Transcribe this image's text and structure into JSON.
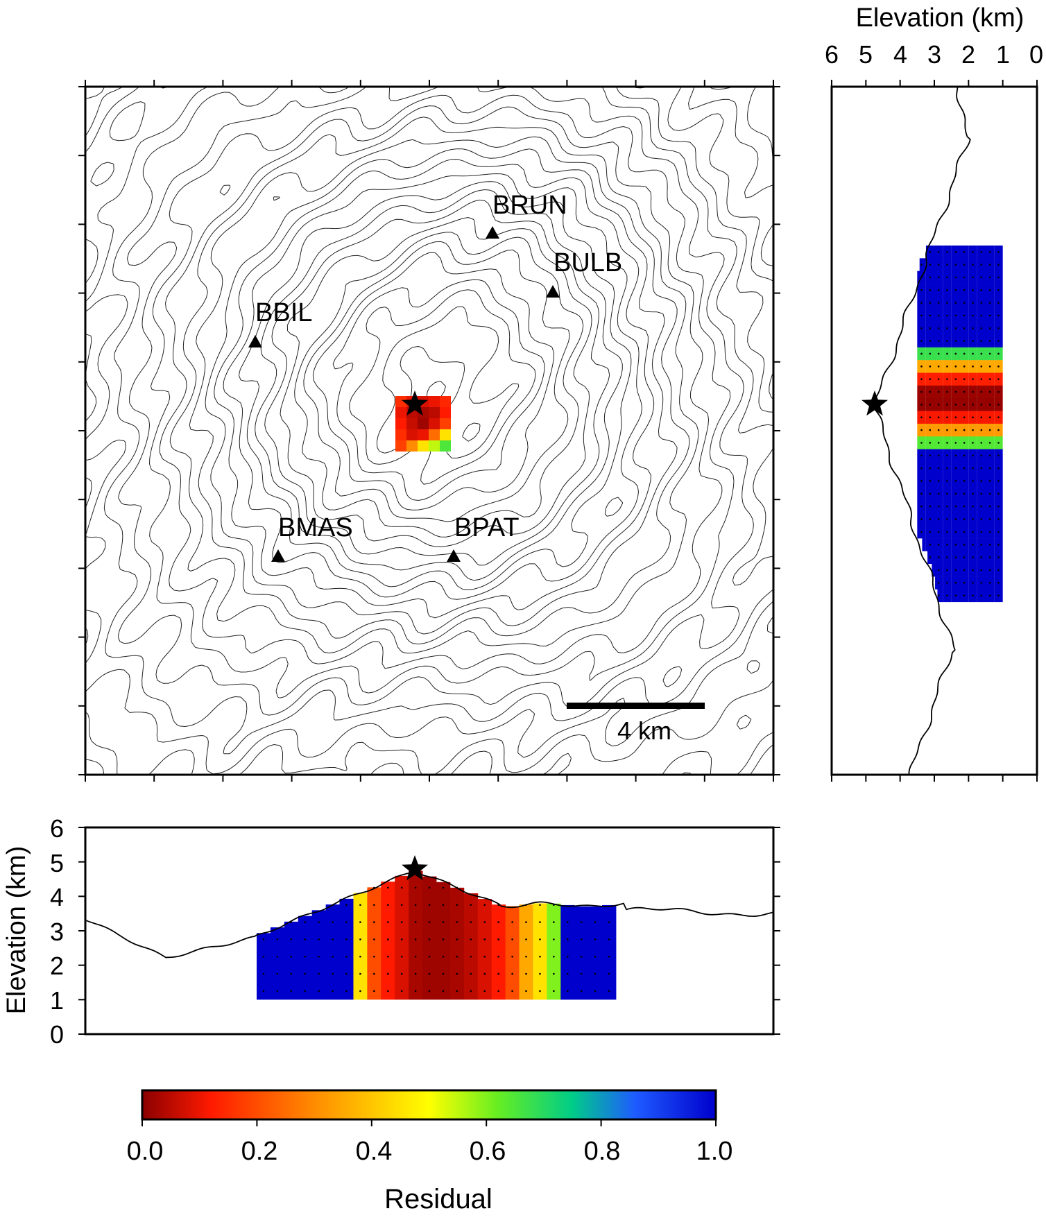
{
  "stations": [
    {
      "name": "BRUN"
    },
    {
      "name": "BULB"
    },
    {
      "name": "BBIL"
    },
    {
      "name": "BMAS"
    },
    {
      "name": "BPAT"
    }
  ],
  "scale_bar": {
    "label": "4 km"
  },
  "side_panel": {
    "axis_title": "Elevation (km)",
    "ticks": [
      "6",
      "5",
      "4",
      "3",
      "2",
      "1",
      "0"
    ]
  },
  "bottom_panel": {
    "axis_title": "Elevation (km)",
    "ticks": [
      "0",
      "1",
      "2",
      "3",
      "4",
      "5",
      "6"
    ]
  },
  "colorbar": {
    "title": "Residual",
    "ticks": [
      "0.0",
      "0.2",
      "0.4",
      "0.6",
      "0.8",
      "1.0"
    ],
    "colors": [
      "#8b0000",
      "#ff1a00",
      "#ff8c00",
      "#ffff00",
      "#66ee22",
      "#00cc88",
      "#1e5bff",
      "#0000cc"
    ]
  }
}
